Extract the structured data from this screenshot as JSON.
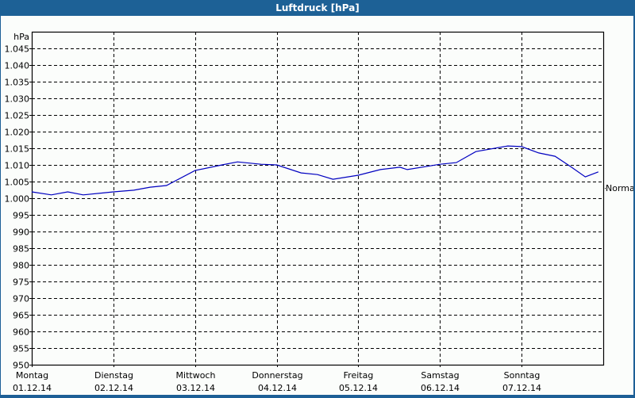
{
  "window": {
    "title": "Luftdruck [hPa]"
  },
  "chart": {
    "unit_label": "hPa",
    "reference_label": "Normal",
    "line_color": "#0000c0",
    "y_ticks": [
      "1.045",
      "1.040",
      "1.035",
      "1.030",
      "1.025",
      "1.020",
      "1.015",
      "1.010",
      "1.005",
      "1.000",
      "995",
      "990",
      "985",
      "980",
      "975",
      "970",
      "965",
      "960",
      "955",
      "950"
    ],
    "x_ticks": [
      {
        "day": "Montag",
        "date": "01.12.14"
      },
      {
        "day": "Dienstag",
        "date": "02.12.14"
      },
      {
        "day": "Mittwoch",
        "date": "03.12.14"
      },
      {
        "day": "Donnerstag",
        "date": "04.12.14"
      },
      {
        "day": "Freitag",
        "date": "05.12.14"
      },
      {
        "day": "Samstag",
        "date": "06.12.14"
      },
      {
        "day": "Sonntag",
        "date": "07.12.14"
      }
    ]
  },
  "chart_data": {
    "type": "line",
    "title": "Luftdruck [hPa]",
    "xlabel": "",
    "ylabel": "hPa",
    "ylim": [
      950,
      1050
    ],
    "grid": true,
    "reference_line": {
      "label": "Normal",
      "value": 1003
    },
    "categories": [
      "Montag 01.12.14",
      "Dienstag 02.12.14",
      "Mittwoch 03.12.14",
      "Donnerstag 04.12.14",
      "Freitag 05.12.14",
      "Samstag 06.12.14",
      "Sonntag 07.12.14"
    ],
    "series": [
      {
        "name": "Luftdruck",
        "x_days": [
          0.0,
          0.24,
          0.44,
          0.63,
          1.0,
          1.25,
          1.45,
          1.65,
          2.0,
          2.33,
          2.52,
          2.81,
          3.0,
          3.3,
          3.5,
          3.69,
          4.0,
          4.27,
          4.51,
          4.6,
          5.0,
          5.2,
          5.44,
          5.83,
          6.0,
          6.21,
          6.41,
          6.6,
          6.78,
          6.94
        ],
        "values": [
          1001.9,
          1001.0,
          1001.9,
          1001.0,
          1001.9,
          1002.4,
          1003.3,
          1003.8,
          1008.3,
          1010.0,
          1010.9,
          1010.2,
          1010.0,
          1007.6,
          1007.1,
          1005.7,
          1006.9,
          1008.6,
          1009.3,
          1008.6,
          1010.2,
          1010.7,
          1014.0,
          1015.7,
          1015.5,
          1013.6,
          1012.6,
          1009.5,
          1006.4,
          1007.9
        ]
      }
    ]
  }
}
